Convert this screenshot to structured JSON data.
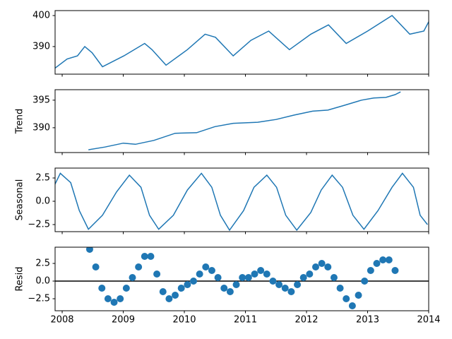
{
  "chart_data": [
    {
      "type": "line",
      "color": "#1f77b4",
      "x": [
        2007.88,
        2008.08,
        2008.25,
        2008.37,
        2008.49,
        2008.66,
        2009.01,
        2009.35,
        2009.47,
        2009.7,
        2010.05,
        2010.34,
        2010.51,
        2010.8,
        2011.09,
        2011.38,
        2011.72,
        2012.07,
        2012.36,
        2012.65,
        2013.0,
        2013.4,
        2013.69,
        2013.92,
        2014.0
      ],
      "values": [
        383,
        386,
        387,
        390,
        388,
        383.5,
        387,
        391,
        389,
        384,
        389,
        394,
        393,
        387,
        392,
        395,
        389,
        394,
        397,
        391,
        395,
        400,
        394,
        395,
        398
      ],
      "xlim": [
        2007.884,
        2014.0
      ],
      "xticks": [
        2008,
        2009,
        2010,
        2011,
        2012,
        2013,
        2014
      ],
      "xticklabels": false,
      "ylim": [
        381.1,
        401.6
      ],
      "yticks": [
        390,
        400
      ]
    },
    {
      "type": "line",
      "color": "#1f77b4",
      "ylabel": "Trend",
      "x": [
        2008.43,
        2008.7,
        2009.0,
        2009.2,
        2009.5,
        2009.85,
        2010.2,
        2010.5,
        2010.8,
        2011.2,
        2011.5,
        2011.8,
        2012.1,
        2012.35,
        2012.6,
        2012.9,
        2013.1,
        2013.3,
        2013.45,
        2013.54
      ],
      "values": [
        386,
        386.5,
        387.2,
        387.0,
        387.7,
        389,
        389.1,
        390.2,
        390.8,
        391.0,
        391.5,
        392.3,
        393.0,
        393.2,
        394.0,
        395.0,
        395.4,
        395.5,
        396.0,
        396.5
      ],
      "xlim": [
        2007.884,
        2014.0
      ],
      "xticks": [
        2008,
        2009,
        2010,
        2011,
        2012,
        2013,
        2014
      ],
      "xticklabels": false,
      "ylim": [
        385.5,
        396.9
      ],
      "yticks": [
        390,
        395
      ]
    },
    {
      "type": "line",
      "color": "#1f77b4",
      "ylabel": "Seasonal",
      "x": [
        2007.88,
        2007.97,
        2008.14,
        2008.28,
        2008.43,
        2008.66,
        2008.89,
        2009.1,
        2009.29,
        2009.43,
        2009.58,
        2009.82,
        2010.05,
        2010.28,
        2010.45,
        2010.59,
        2010.74,
        2010.97,
        2011.14,
        2011.35,
        2011.51,
        2011.66,
        2011.84,
        2012.07,
        2012.24,
        2012.42,
        2012.59,
        2012.76,
        2012.94,
        2013.17,
        2013.4,
        2013.57,
        2013.75,
        2013.86,
        2013.98
      ],
      "values": [
        1.8,
        3.0,
        2.0,
        -1,
        -3.0,
        -1.5,
        1,
        2.8,
        1.5,
        -1.5,
        -3.0,
        -1.5,
        1.2,
        3.0,
        1.5,
        -1.5,
        -3.1,
        -1,
        1.5,
        2.8,
        1.5,
        -1.5,
        -3.1,
        -1.2,
        1.2,
        2.8,
        1.5,
        -1.5,
        -3.0,
        -1,
        1.5,
        3.0,
        1.5,
        -1.5,
        -2.5
      ],
      "xlim": [
        2007.884,
        2014.0
      ],
      "xticks": [
        2008,
        2009,
        2010,
        2011,
        2012,
        2013,
        2014
      ],
      "xticklabels": false,
      "ylim": [
        -3.26,
        3.56
      ],
      "yticks": [
        2.5,
        {
          "value": 0,
          "label": "0.0"
        },
        {
          "value": -2.5,
          "label": "−2.5"
        }
      ]
    },
    {
      "type": "scatter",
      "color": "#1f77b4",
      "ylabel": "Resid",
      "hline": 0,
      "x": [
        2008.45,
        2008.55,
        2008.65,
        2008.75,
        2008.85,
        2008.95,
        2009.05,
        2009.15,
        2009.25,
        2009.35,
        2009.45,
        2009.55,
        2009.65,
        2009.75,
        2009.85,
        2009.95,
        2010.05,
        2010.15,
        2010.25,
        2010.35,
        2010.45,
        2010.55,
        2010.65,
        2010.75,
        2010.85,
        2010.95,
        2011.05,
        2011.15,
        2011.25,
        2011.35,
        2011.45,
        2011.55,
        2011.65,
        2011.75,
        2011.85,
        2011.95,
        2012.05,
        2012.15,
        2012.25,
        2012.35,
        2012.45,
        2012.55,
        2012.65,
        2012.75,
        2012.85,
        2012.95,
        2013.05,
        2013.15,
        2013.25,
        2013.35,
        2013.45
      ],
      "values": [
        4.5,
        2,
        -1,
        -2.5,
        -3,
        -2.5,
        -1,
        0.5,
        2,
        3.5,
        3.5,
        1,
        -1.5,
        -2.5,
        -2,
        -1,
        -0.5,
        0,
        1,
        2,
        1.5,
        0.5,
        -1,
        -1.5,
        -0.5,
        0.5,
        0.5,
        1,
        1.5,
        1,
        0,
        -0.5,
        -1,
        -1.5,
        -0.5,
        0.5,
        1,
        2,
        2.5,
        2,
        0.5,
        -1,
        -2.5,
        -3.5,
        -2,
        0,
        1.5,
        2.5,
        3,
        3,
        1.5
      ],
      "xlim": [
        2007.884,
        2014.0
      ],
      "xticks": [
        2008,
        2009,
        2010,
        2011,
        2012,
        2013,
        2014
      ],
      "xticklabels": true,
      "ylim": [
        -4.2,
        4.8
      ],
      "yticks": [
        2.5,
        {
          "value": 0,
          "label": "0.0"
        },
        {
          "value": -2.5,
          "label": "−2.5"
        }
      ]
    }
  ]
}
